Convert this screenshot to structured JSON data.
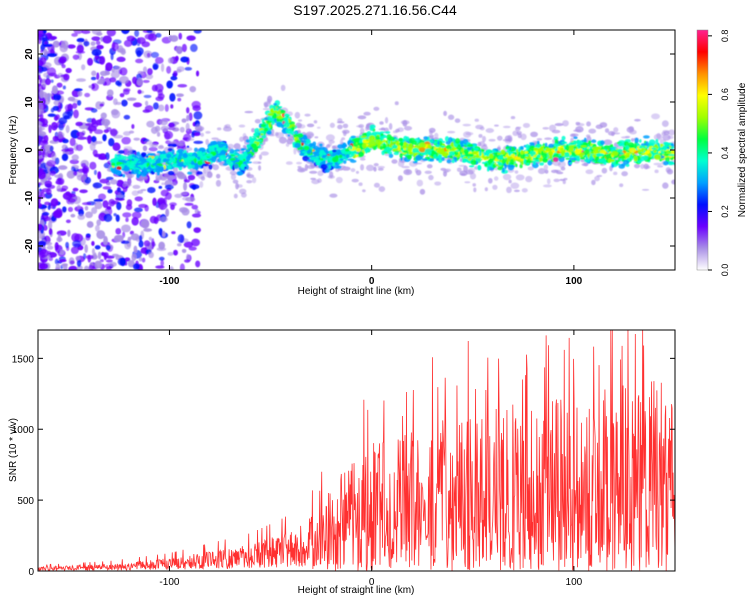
{
  "title": "S197.2025.271.16.56.C44",
  "chart_data": [
    {
      "type": "heatmap",
      "title": "S197.2025.271.16.56.C44",
      "xlabel": "Height of straight line (km)",
      "ylabel": "Frequency (Hz)",
      "xlim": [
        -165,
        150
      ],
      "ylim": [
        -25,
        25
      ],
      "xticks": [
        -100,
        0,
        100
      ],
      "yticks": [
        -20,
        -10,
        0,
        10,
        20
      ],
      "ridge": {
        "x": [
          -125,
          -110,
          -95,
          -85,
          -75,
          -65,
          -55,
          -48,
          -42,
          -35,
          -28,
          -20,
          -10,
          0,
          20,
          40,
          60,
          80,
          100,
          120,
          140,
          150
        ],
        "freq": [
          -3,
          -3,
          -2,
          -2,
          0,
          -3,
          3,
          8,
          6,
          1,
          -1,
          -2,
          0,
          2,
          0,
          0,
          -2,
          -1,
          0,
          -1,
          0,
          -1
        ]
      },
      "colorbar": {
        "label": "Normalized spectral amplitude",
        "range": [
          0.0,
          0.82
        ],
        "ticks": [
          "0.0",
          "0.2",
          "0.4",
          "0.6",
          "0.8"
        ],
        "colors": [
          "#ffffff",
          "#a98fe6",
          "#6a00ff",
          "#0010ff",
          "#00a0ff",
          "#00ffd0",
          "#00ff40",
          "#a0ff00",
          "#ffff00",
          "#ff9000",
          "#ff0000",
          "#ff2090"
        ]
      }
    },
    {
      "type": "line",
      "xlabel": "Height of straight line (km)",
      "ylabel": "SNR (10 * v/v)",
      "xlim": [
        -165,
        150
      ],
      "ylim": [
        0,
        1700
      ],
      "xticks": [
        -100,
        0,
        100
      ],
      "yticks": [
        0,
        500,
        1000,
        1500
      ],
      "color": "#ff3030",
      "envelope": {
        "x": [
          -165,
          -130,
          -100,
          -80,
          -60,
          -45,
          -35,
          -30,
          -25,
          -15,
          0,
          20,
          40,
          60,
          80,
          100,
          120,
          140,
          150
        ],
        "upper": [
          30,
          50,
          90,
          140,
          190,
          260,
          320,
          380,
          500,
          700,
          900,
          1000,
          1100,
          1150,
          1200,
          1250,
          1300,
          1450,
          1200
        ]
      }
    }
  ]
}
